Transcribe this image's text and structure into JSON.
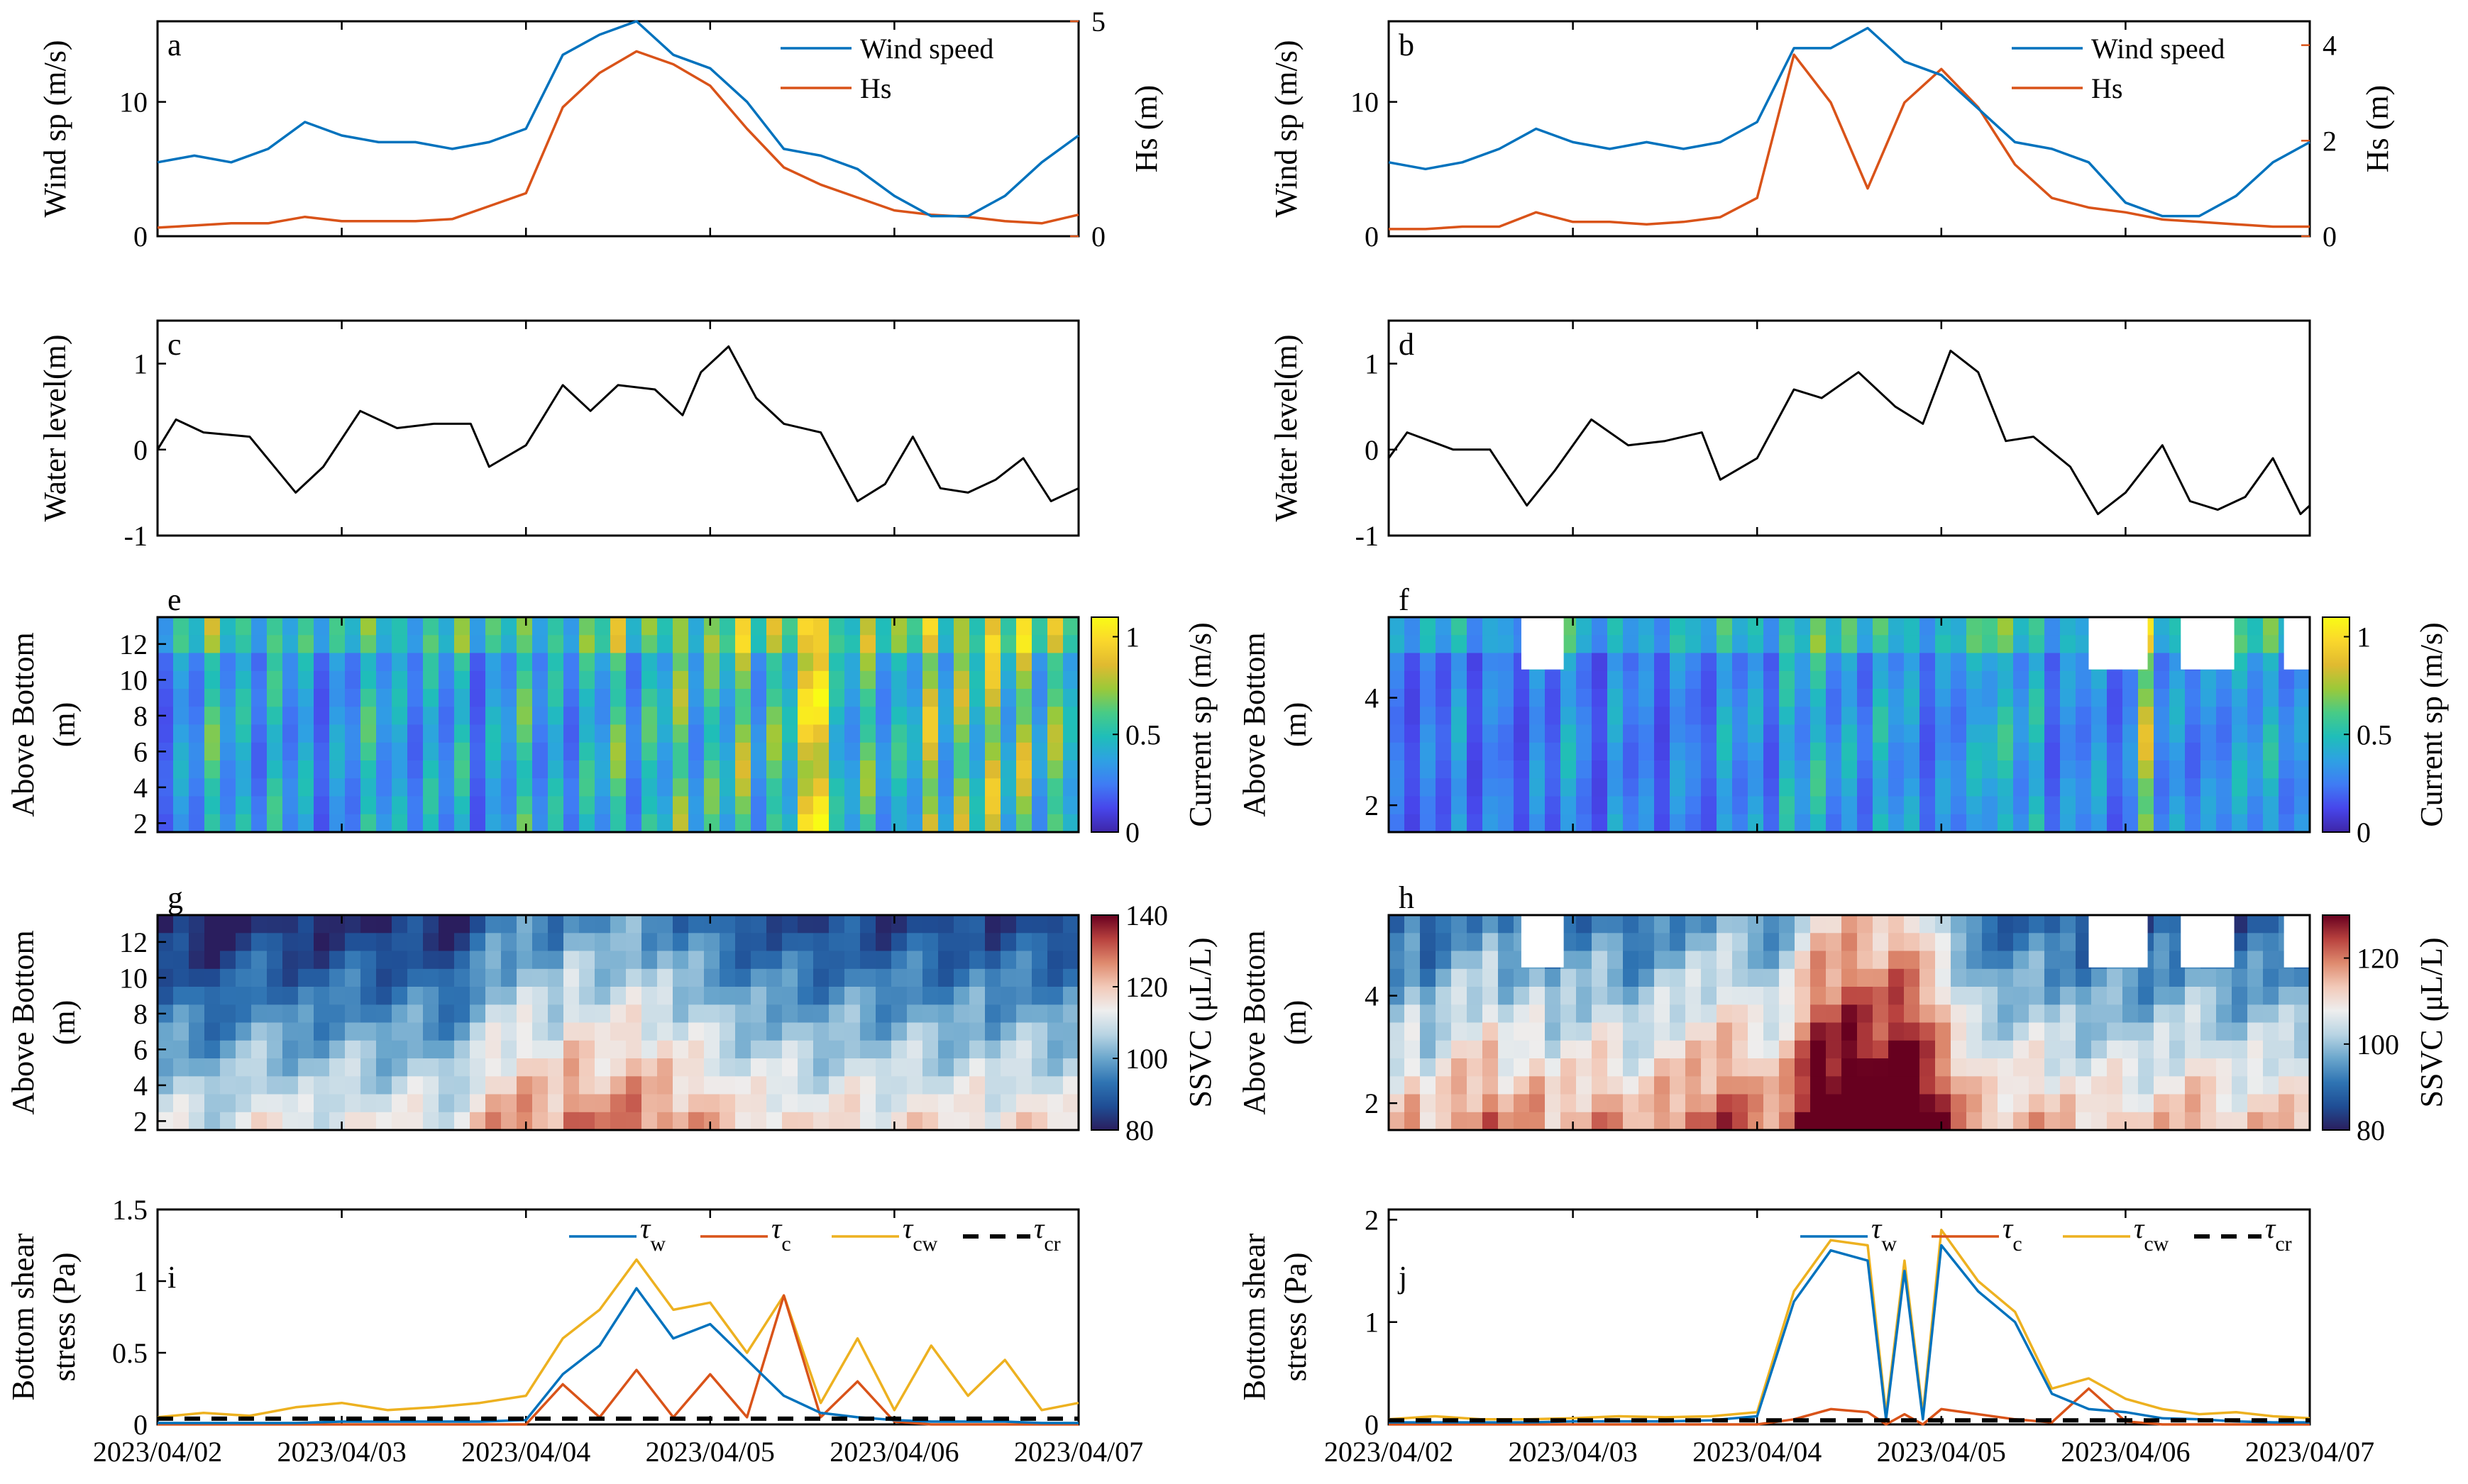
{
  "figure": {
    "columns": [
      {
        "key": "left"
      },
      {
        "key": "right"
      }
    ]
  },
  "colors": {
    "wind": "#0072BD",
    "hs": "#D95319",
    "tw": "#0072BD",
    "tc": "#D95319",
    "tcw": "#EDB120",
    "tcr": "#000000",
    "current_scale": [
      "#3E26A8",
      "#4746EB",
      "#3F7CF4",
      "#2EA1E3",
      "#1FBEB9",
      "#48CB86",
      "#9BC939",
      "#E0BA30",
      "#FAD72C",
      "#F9FB15"
    ],
    "ssvc_scale": [
      "#2A1E5E",
      "#1F4E95",
      "#2F74B3",
      "#6AA6CC",
      "#B8D4E3",
      "#EEEEEE",
      "#F2C9B8",
      "#DE8A6E",
      "#B8413E",
      "#67001F"
    ]
  },
  "x_axis": {
    "ticks": [
      "2023/04/02",
      "2023/04/03",
      "2023/04/04",
      "2023/04/05",
      "2023/04/06",
      "2023/04/07"
    ]
  },
  "panels": {
    "a": {
      "letter": "a",
      "ylabel": "Wind sp (m/s)",
      "ylabel2": "Hs (m)",
      "yticks": [
        "0",
        "10"
      ],
      "y2ticks": [
        "0",
        "5"
      ],
      "legend": [
        "Wind speed",
        "Hs"
      ]
    },
    "b": {
      "letter": "b",
      "ylabel": "Wind sp (m/s)",
      "ylabel2": "Hs (m)",
      "yticks": [
        "0",
        "10"
      ],
      "y2ticks": [
        "0",
        "2",
        "4"
      ],
      "legend": [
        "Wind speed",
        "Hs"
      ]
    },
    "c": {
      "letter": "c",
      "ylabel": "Water level(m)",
      "yticks": [
        "-1",
        "0",
        "1"
      ]
    },
    "d": {
      "letter": "d",
      "ylabel": "Water level(m)",
      "yticks": [
        "-1",
        "0",
        "1"
      ]
    },
    "e": {
      "letter": "e",
      "ylabel1": "Above Bottom",
      "ylabel2": "(m)",
      "yticks": [
        "2",
        "4",
        "6",
        "8",
        "10",
        "12"
      ],
      "cbar_label": "Current sp (m/s)",
      "cbar_ticks": [
        "0",
        "0.5",
        "1"
      ]
    },
    "f": {
      "letter": "f",
      "ylabel1": "Above Bottom",
      "ylabel2": "(m)",
      "yticks": [
        "2",
        "4"
      ],
      "cbar_label": "Current sp (m/s)",
      "cbar_ticks": [
        "0",
        "0.5",
        "1"
      ]
    },
    "g": {
      "letter": "g",
      "ylabel1": "Above Bottom",
      "ylabel2": "(m)",
      "yticks": [
        "2",
        "4",
        "6",
        "8",
        "10",
        "12"
      ],
      "cbar_label": "SSVC (μL/L)",
      "cbar_ticks": [
        "80",
        "100",
        "120",
        "140"
      ]
    },
    "h": {
      "letter": "h",
      "ylabel1": "Above Bottom",
      "ylabel2": "(m)",
      "yticks": [
        "2",
        "4"
      ],
      "cbar_label": "SSVC (μL/L)",
      "cbar_ticks": [
        "80",
        "100",
        "120"
      ]
    },
    "i": {
      "letter": "i",
      "ylabel1": "Bottom shear",
      "ylabel2": "stress (Pa)",
      "yticks": [
        "0",
        "0.5",
        "1",
        "1.5"
      ],
      "legend_sub": [
        "w",
        "c",
        "cw",
        "cr"
      ]
    },
    "j": {
      "letter": "j",
      "ylabel1": "Bottom shear",
      "ylabel2": "stress (Pa)",
      "yticks": [
        "0",
        "1",
        "2"
      ],
      "legend_sub": [
        "w",
        "c",
        "cw",
        "cr"
      ]
    }
  },
  "chart_data": [
    {
      "panel": "a",
      "type": "line",
      "title": "",
      "xlabel": "",
      "ylabel": "Wind sp (m/s)",
      "ylim": [
        0,
        16
      ],
      "y2label": "Hs (m)",
      "y2lim": [
        0,
        5
      ],
      "xlim": [
        0,
        5
      ],
      "x": [
        0,
        0.2,
        0.4,
        0.6,
        0.8,
        1.0,
        1.2,
        1.4,
        1.6,
        1.8,
        2.0,
        2.2,
        2.4,
        2.6,
        2.8,
        3.0,
        3.2,
        3.4,
        3.6,
        3.8,
        4.0,
        4.2,
        4.4,
        4.6,
        4.8,
        5.0
      ],
      "series": [
        {
          "name": "Wind speed",
          "axis": "left",
          "values": [
            5.5,
            6,
            5.5,
            6.5,
            8.5,
            7.5,
            7,
            7,
            6.5,
            7,
            8,
            13.5,
            15,
            16,
            13.5,
            12.5,
            10,
            6.5,
            6,
            5,
            3,
            1.5,
            1.5,
            3,
            5.5,
            7.5
          ]
        },
        {
          "name": "Hs",
          "axis": "right",
          "values": [
            0.2,
            0.25,
            0.3,
            0.3,
            0.45,
            0.35,
            0.35,
            0.35,
            0.4,
            0.7,
            1.0,
            3.0,
            3.8,
            4.3,
            4.0,
            3.5,
            2.5,
            1.6,
            1.2,
            0.9,
            0.6,
            0.5,
            0.45,
            0.35,
            0.3,
            0.5
          ]
        }
      ]
    },
    {
      "panel": "b",
      "type": "line",
      "title": "",
      "xlabel": "",
      "ylabel": "Wind sp (m/s)",
      "ylim": [
        0,
        16
      ],
      "y2label": "Hs (m)",
      "y2lim": [
        0,
        4.5
      ],
      "xlim": [
        0,
        5
      ],
      "x": [
        0,
        0.2,
        0.4,
        0.6,
        0.8,
        1.0,
        1.2,
        1.4,
        1.6,
        1.8,
        2.0,
        2.2,
        2.4,
        2.6,
        2.8,
        3.0,
        3.2,
        3.4,
        3.6,
        3.8,
        4.0,
        4.2,
        4.4,
        4.6,
        4.8,
        5.0
      ],
      "series": [
        {
          "name": "Wind speed",
          "axis": "left",
          "values": [
            5.5,
            5,
            5.5,
            6.5,
            8,
            7,
            6.5,
            7,
            6.5,
            7,
            8.5,
            14,
            14,
            15.5,
            13,
            12,
            9.5,
            7,
            6.5,
            5.5,
            2.5,
            1.5,
            1.5,
            3,
            5.5,
            7
          ]
        },
        {
          "name": "Hs",
          "axis": "right",
          "values": [
            0.15,
            0.15,
            0.2,
            0.2,
            0.5,
            0.3,
            0.3,
            0.25,
            0.3,
            0.4,
            0.8,
            3.8,
            2.8,
            1.0,
            2.8,
            3.5,
            2.7,
            1.5,
            0.8,
            0.6,
            0.5,
            0.35,
            0.3,
            0.25,
            0.2,
            0.2
          ]
        }
      ]
    },
    {
      "panel": "c",
      "type": "line",
      "title": "",
      "xlabel": "",
      "ylabel": "Water level(m)",
      "ylim": [
        -1,
        1.5
      ],
      "xlim": [
        0,
        5
      ],
      "x": [
        0,
        0.1,
        0.25,
        0.5,
        0.75,
        0.9,
        1.1,
        1.3,
        1.5,
        1.7,
        1.8,
        2.0,
        2.2,
        2.35,
        2.5,
        2.7,
        2.85,
        2.95,
        3.1,
        3.25,
        3.4,
        3.6,
        3.8,
        3.95,
        4.1,
        4.25,
        4.4,
        4.55,
        4.7,
        4.85,
        5.0
      ],
      "series": [
        {
          "name": "Water level",
          "values": [
            0,
            0.35,
            0.2,
            0.15,
            -0.5,
            -0.2,
            0.45,
            0.25,
            0.3,
            0.3,
            -0.2,
            0.05,
            0.75,
            0.45,
            0.75,
            0.7,
            0.4,
            0.9,
            1.2,
            0.6,
            0.3,
            0.2,
            -0.6,
            -0.4,
            0.15,
            -0.45,
            -0.5,
            -0.35,
            -0.1,
            -0.6,
            -0.45
          ]
        }
      ]
    },
    {
      "panel": "d",
      "type": "line",
      "title": "",
      "xlabel": "",
      "ylabel": "Water level(m)",
      "ylim": [
        -1,
        1.5
      ],
      "xlim": [
        0,
        5
      ],
      "x": [
        0,
        0.1,
        0.35,
        0.55,
        0.75,
        0.9,
        1.1,
        1.3,
        1.5,
        1.7,
        1.8,
        2.0,
        2.2,
        2.35,
        2.55,
        2.75,
        2.9,
        3.05,
        3.2,
        3.35,
        3.5,
        3.7,
        3.85,
        4.0,
        4.2,
        4.35,
        4.5,
        4.65,
        4.8,
        4.95,
        5.0
      ],
      "series": [
        {
          "name": "Water level",
          "values": [
            -0.1,
            0.2,
            0.0,
            0.0,
            -0.65,
            -0.25,
            0.35,
            0.05,
            0.1,
            0.2,
            -0.35,
            -0.1,
            0.7,
            0.6,
            0.9,
            0.5,
            0.3,
            1.15,
            0.9,
            0.1,
            0.15,
            -0.2,
            -0.75,
            -0.5,
            0.05,
            -0.6,
            -0.7,
            -0.55,
            -0.1,
            -0.75,
            -0.65
          ]
        }
      ]
    },
    {
      "panel": "e",
      "type": "heatmap",
      "title": "",
      "xlabel": "",
      "ylabel": "Above Bottom (m)",
      "ylim": [
        1.5,
        13.5
      ],
      "xlim": [
        0,
        5
      ],
      "clim": [
        0,
        1.1
      ],
      "colorbar_label": "Current sp (m/s)",
      "columns": [
        0.2,
        0.45,
        0.3,
        0.7,
        0.35,
        0.55,
        0.25,
        0.6,
        0.3,
        0.5,
        0.2,
        0.45,
        0.3,
        0.65,
        0.35,
        0.5,
        0.25,
        0.55,
        0.3,
        0.6,
        0.2,
        0.5,
        0.35,
        0.7,
        0.3,
        0.55,
        0.25,
        0.6,
        0.4,
        0.75,
        0.3,
        0.65,
        0.45,
        0.8,
        0.35,
        0.7,
        0.45,
        0.85,
        0.35,
        0.75,
        0.5,
        1.05,
        1.1,
        0.55,
        0.4,
        0.75,
        0.35,
        0.6,
        0.45,
        0.95,
        0.4,
        0.85,
        0.5,
        0.95,
        0.45,
        0.9,
        0.4,
        0.8,
        0.5
      ]
    },
    {
      "panel": "f",
      "type": "heatmap",
      "title": "",
      "xlabel": "",
      "ylabel": "Above Bottom (m)",
      "ylim": [
        1.5,
        5.5
      ],
      "xlim": [
        0,
        5
      ],
      "clim": [
        0,
        1.1
      ],
      "colorbar_label": "Current sp (m/s)",
      "columns": [
        0.3,
        0.15,
        0.35,
        0.2,
        0.45,
        0.15,
        0.35,
        0.3,
        0.15,
        0.4,
        0.2,
        0.5,
        0.3,
        0.15,
        0.45,
        0.25,
        0.35,
        0.15,
        0.4,
        0.3,
        0.2,
        0.5,
        0.3,
        0.45,
        0.2,
        0.55,
        0.35,
        0.6,
        0.3,
        0.5,
        0.25,
        0.55,
        0.35,
        0.45,
        0.2,
        0.4,
        0.3,
        0.5,
        0.45,
        0.6,
        0.35,
        0.55,
        0.2,
        0.4,
        0.3,
        0.45,
        0.2,
        0.35,
        0.9,
        0.3,
        0.45,
        0.25,
        0.4,
        0.3,
        0.5,
        0.35,
        0.55,
        0.3,
        0.4
      ]
    },
    {
      "panel": "g",
      "type": "heatmap",
      "title": "",
      "xlabel": "",
      "ylabel": "Above Bottom (m)",
      "ylim": [
        1.5,
        13.5
      ],
      "xlim": [
        0,
        5
      ],
      "clim": [
        80,
        140
      ],
      "colorbar_label": "SSVC (μL/L)",
      "columns": [
        0.25,
        0.3,
        0.25,
        0.2,
        0.25,
        0.3,
        0.35,
        0.3,
        0.25,
        0.3,
        0.25,
        0.3,
        0.35,
        0.3,
        0.25,
        0.3,
        0.35,
        0.3,
        0.25,
        0.3,
        0.4,
        0.5,
        0.45,
        0.55,
        0.5,
        0.45,
        0.6,
        0.55,
        0.5,
        0.55,
        0.6,
        0.5,
        0.55,
        0.45,
        0.5,
        0.45,
        0.4,
        0.35,
        0.4,
        0.35,
        0.4,
        0.35,
        0.3,
        0.35,
        0.4,
        0.35,
        0.3,
        0.35,
        0.4,
        0.35,
        0.3,
        0.35,
        0.4,
        0.3,
        0.35,
        0.4,
        0.35,
        0.3,
        0.35
      ]
    },
    {
      "panel": "h",
      "type": "heatmap",
      "title": "",
      "xlabel": "",
      "ylabel": "Above Bottom (m)",
      "ylim": [
        1.5,
        5.5
      ],
      "xlim": [
        0,
        5
      ],
      "clim": [
        80,
        130
      ],
      "colorbar_label": "SSVC (μL/L)",
      "columns": [
        0.4,
        0.5,
        0.35,
        0.45,
        0.55,
        0.5,
        0.6,
        0.45,
        0.5,
        0.55,
        0.4,
        0.5,
        0.45,
        0.55,
        0.5,
        0.4,
        0.45,
        0.55,
        0.5,
        0.6,
        0.55,
        0.65,
        0.6,
        0.55,
        0.5,
        0.6,
        0.75,
        0.9,
        0.85,
        0.95,
        0.9,
        0.85,
        0.95,
        0.9,
        0.8,
        0.7,
        0.55,
        0.5,
        0.45,
        0.4,
        0.45,
        0.5,
        0.4,
        0.45,
        0.35,
        0.4,
        0.45,
        0.4,
        0.35,
        0.45,
        0.4,
        0.5,
        0.45,
        0.4,
        0.35,
        0.45,
        0.4,
        0.45,
        0.4
      ]
    },
    {
      "panel": "i",
      "type": "line",
      "title": "",
      "xlabel": "",
      "ylabel": "Bottom shear stress (Pa)",
      "ylim": [
        0,
        1.5
      ],
      "xlim": [
        0,
        5
      ],
      "x": [
        0,
        0.25,
        0.5,
        0.75,
        1.0,
        1.25,
        1.5,
        1.75,
        2.0,
        2.2,
        2.4,
        2.6,
        2.8,
        3.0,
        3.2,
        3.4,
        3.6,
        3.8,
        4.0,
        4.2,
        4.4,
        4.6,
        4.8,
        5.0
      ],
      "series": [
        {
          "name": "τw",
          "values": [
            0.01,
            0.01,
            0.01,
            0.01,
            0.02,
            0.02,
            0.02,
            0.02,
            0.03,
            0.35,
            0.55,
            0.95,
            0.6,
            0.7,
            0.45,
            0.2,
            0.08,
            0.05,
            0.03,
            0.02,
            0.02,
            0.02,
            0.01,
            0.01
          ]
        },
        {
          "name": "τc",
          "values": [
            0,
            0,
            0,
            0,
            0,
            0,
            0,
            0,
            0,
            0.28,
            0.05,
            0.38,
            0.05,
            0.35,
            0.05,
            0.9,
            0.05,
            0.3,
            0.02,
            0,
            0,
            0,
            0,
            0
          ]
        },
        {
          "name": "τcw",
          "values": [
            0.05,
            0.08,
            0.06,
            0.12,
            0.15,
            0.1,
            0.12,
            0.15,
            0.2,
            0.6,
            0.8,
            1.15,
            0.8,
            0.85,
            0.5,
            0.9,
            0.15,
            0.6,
            0.1,
            0.55,
            0.2,
            0.45,
            0.1,
            0.15
          ]
        },
        {
          "name": "τcr",
          "style": "dashed",
          "values": [
            0.04,
            0.04,
            0.04,
            0.04,
            0.04,
            0.04,
            0.04,
            0.04,
            0.04,
            0.04,
            0.04,
            0.04,
            0.04,
            0.04,
            0.04,
            0.04,
            0.04,
            0.04,
            0.04,
            0.04,
            0.04,
            0.04,
            0.04,
            0.04
          ]
        }
      ]
    },
    {
      "panel": "j",
      "type": "line",
      "title": "",
      "xlabel": "",
      "ylabel": "Bottom shear stress (Pa)",
      "ylim": [
        0,
        2.1
      ],
      "xlim": [
        0,
        5
      ],
      "x": [
        0,
        0.25,
        0.5,
        0.75,
        1.0,
        1.25,
        1.5,
        1.75,
        2.0,
        2.2,
        2.4,
        2.6,
        2.7,
        2.8,
        2.9,
        3.0,
        3.2,
        3.4,
        3.6,
        3.8,
        4.0,
        4.2,
        4.4,
        4.6,
        4.8,
        5.0
      ],
      "series": [
        {
          "name": "τw",
          "values": [
            0.02,
            0.02,
            0.02,
            0.02,
            0.03,
            0.03,
            0.03,
            0.04,
            0.08,
            1.2,
            1.7,
            1.6,
            0.05,
            1.5,
            0.05,
            1.75,
            1.3,
            1.0,
            0.3,
            0.15,
            0.12,
            0.06,
            0.05,
            0.03,
            0.02,
            0.02
          ]
        },
        {
          "name": "τc",
          "values": [
            0,
            0,
            0,
            0,
            0,
            0,
            0,
            0,
            0,
            0.05,
            0.15,
            0.12,
            0,
            0.1,
            0,
            0.15,
            0.1,
            0.05,
            0.02,
            0.35,
            0.03,
            0,
            0,
            0,
            0,
            0
          ]
        },
        {
          "name": "τcw",
          "values": [
            0.05,
            0.08,
            0.05,
            0.05,
            0.06,
            0.08,
            0.07,
            0.08,
            0.12,
            1.3,
            1.8,
            1.75,
            0.1,
            1.6,
            0.1,
            1.9,
            1.4,
            1.1,
            0.35,
            0.45,
            0.25,
            0.15,
            0.1,
            0.12,
            0.08,
            0.06
          ]
        },
        {
          "name": "τcr",
          "style": "dashed",
          "values": [
            0.04,
            0.04,
            0.04,
            0.04,
            0.04,
            0.04,
            0.04,
            0.04,
            0.04,
            0.04,
            0.04,
            0.04,
            0.04,
            0.04,
            0.04,
            0.04,
            0.04,
            0.04,
            0.04,
            0.04,
            0.04,
            0.04,
            0.04,
            0.04,
            0.04,
            0.04
          ]
        }
      ]
    }
  ]
}
